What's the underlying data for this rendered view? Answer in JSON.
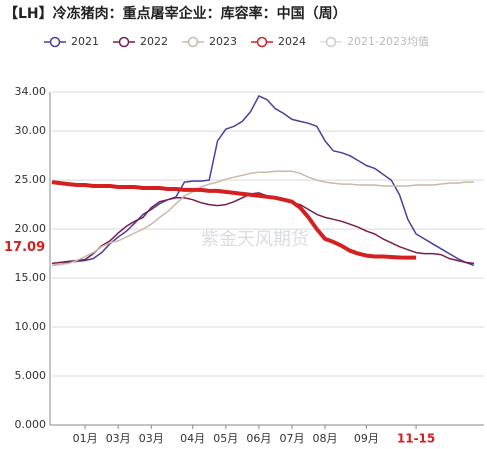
{
  "chart_data": {
    "type": "line",
    "title": "【LH】冷冻猪肉：重点屠宰企业：库容率：中国（周）",
    "watermark": "紫金天风期货",
    "categories": [
      null,
      null,
      null,
      null,
      "01月",
      null,
      null,
      null,
      "03月",
      null,
      null,
      null,
      "03月",
      null,
      null,
      null,
      null,
      "04月",
      null,
      null,
      null,
      "05月",
      null,
      null,
      null,
      "06月",
      null,
      null,
      null,
      "07月",
      null,
      null,
      null,
      "08月",
      null,
      null,
      null,
      null,
      "09月",
      null,
      null,
      null,
      null,
      null,
      "11-15",
      null,
      null,
      null,
      null,
      null,
      null,
      null
    ],
    "highlight_color": "#d42020",
    "ylim": [
      0,
      34
    ],
    "yticks": [
      {
        "value": 0,
        "label": "0.000"
      },
      {
        "value": 5,
        "label": "5.000"
      },
      {
        "value": 10,
        "label": "10.00"
      },
      {
        "value": 15,
        "label": "15.00"
      },
      {
        "value": 20,
        "label": "20.00"
      },
      {
        "value": 25,
        "label": "25.00"
      },
      {
        "value": 30,
        "label": "30.00"
      },
      {
        "value": 34,
        "label": "34.00"
      }
    ],
    "grid": true,
    "annotation": {
      "text": "17.09",
      "value": 17.09,
      "color": "#d42020"
    },
    "series": [
      {
        "name": "2021",
        "color": "#4b3f9c",
        "width": 1.5,
        "values": [
          16.3,
          16.4,
          16.6,
          16.7,
          16.8,
          17.0,
          17.6,
          18.5,
          19.2,
          19.8,
          20.6,
          21.5,
          22.0,
          22.6,
          23.0,
          23.3,
          24.8,
          24.9,
          24.9,
          25.0,
          29.0,
          30.2,
          30.5,
          31.0,
          32.0,
          33.6,
          33.2,
          32.3,
          31.8,
          31.2,
          31.0,
          30.8,
          30.5,
          29.0,
          28.0,
          27.8,
          27.5,
          27.0,
          26.5,
          26.2,
          25.6,
          25.0,
          23.5,
          21.0,
          19.5,
          19.0,
          18.5,
          18.0,
          17.5,
          17.0,
          16.6,
          16.3
        ]
      },
      {
        "name": "2022",
        "color": "#7b1c4f",
        "width": 1.5,
        "values": [
          16.5,
          16.6,
          16.7,
          16.8,
          16.9,
          17.5,
          18.3,
          18.8,
          19.6,
          20.3,
          20.8,
          21.2,
          22.2,
          22.8,
          23.0,
          23.2,
          23.2,
          23.0,
          22.7,
          22.5,
          22.4,
          22.5,
          22.8,
          23.2,
          23.6,
          23.7,
          23.4,
          23.1,
          22.9,
          22.7,
          22.5,
          22.0,
          21.5,
          21.2,
          21.0,
          20.8,
          20.5,
          20.2,
          19.8,
          19.5,
          19.0,
          18.6,
          18.2,
          17.9,
          17.6,
          17.5,
          17.5,
          17.4,
          17.0,
          16.8,
          16.6,
          16.5
        ]
      },
      {
        "name": "2023",
        "color": "#c9b9a5",
        "width": 1.5,
        "values": [
          16.3,
          16.4,
          16.5,
          16.8,
          17.2,
          17.6,
          18.2,
          18.6,
          18.8,
          19.2,
          19.6,
          20.0,
          20.5,
          21.2,
          21.8,
          22.6,
          23.4,
          23.8,
          24.3,
          24.6,
          24.8,
          25.1,
          25.3,
          25.5,
          25.7,
          25.8,
          25.8,
          25.9,
          25.9,
          25.9,
          25.7,
          25.3,
          25.0,
          24.8,
          24.7,
          24.6,
          24.6,
          24.5,
          24.5,
          24.5,
          24.4,
          24.4,
          24.4,
          24.4,
          24.5,
          24.5,
          24.5,
          24.6,
          24.7,
          24.7,
          24.8,
          24.8
        ]
      },
      {
        "name": "2024",
        "color": "#d42020",
        "width": 4,
        "values": [
          24.8,
          24.7,
          24.6,
          24.5,
          24.5,
          24.4,
          24.4,
          24.4,
          24.3,
          24.3,
          24.3,
          24.2,
          24.2,
          24.2,
          24.1,
          24.1,
          24.0,
          24.0,
          24.0,
          23.9,
          23.9,
          23.8,
          23.7,
          23.6,
          23.5,
          23.4,
          23.3,
          23.2,
          23.0,
          22.8,
          22.2,
          21.2,
          20.0,
          19.0,
          18.7,
          18.3,
          17.8,
          17.5,
          17.3,
          17.2,
          17.2,
          17.15,
          17.1,
          17.09,
          17.09,
          null,
          null,
          null,
          null,
          null,
          null,
          null
        ]
      },
      {
        "name": "2021-2023均值",
        "color": "#cccccc",
        "visible": false
      }
    ]
  }
}
